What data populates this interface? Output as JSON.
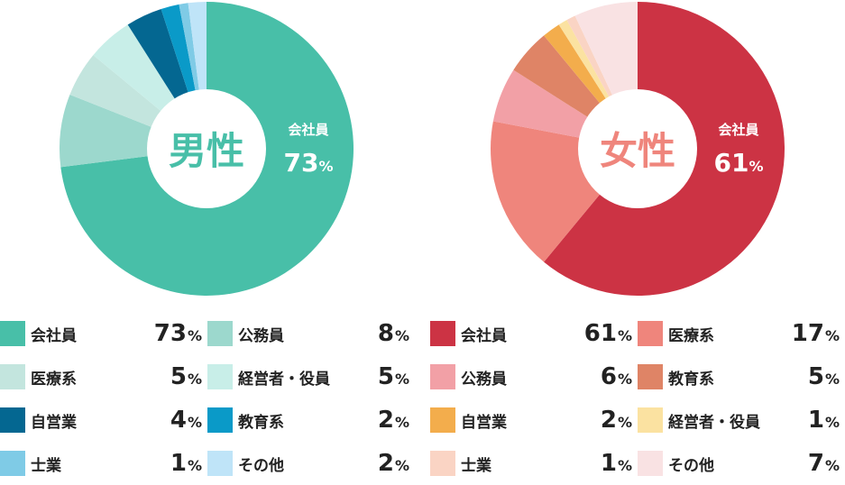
{
  "chart_data": [
    {
      "type": "pie",
      "title": "男性",
      "inner_label": {
        "category": "会社員",
        "value": "73",
        "unit": "%"
      },
      "slices": [
        {
          "label": "会社員",
          "value": 73,
          "color": "#48bfa8"
        },
        {
          "label": "公務員",
          "value": 8,
          "color": "#9cd8cd"
        },
        {
          "label": "医療系",
          "value": 5,
          "color": "#c3e5de"
        },
        {
          "label": "経営者・役員",
          "value": 5,
          "color": "#c8eee8"
        },
        {
          "label": "自営業",
          "value": 4,
          "color": "#046791"
        },
        {
          "label": "教育系",
          "value": 2,
          "color": "#0a9ac8"
        },
        {
          "label": "士業",
          "value": 1,
          "color": "#7fcbe6"
        },
        {
          "label": "その他",
          "value": 2,
          "color": "#bfe4f8"
        }
      ],
      "title_color": "#48bfa8"
    },
    {
      "type": "pie",
      "title": "女性",
      "inner_label": {
        "category": "会社員",
        "value": "61",
        "unit": "%"
      },
      "slices": [
        {
          "label": "会社員",
          "value": 61,
          "color": "#cc3344"
        },
        {
          "label": "医療系",
          "value": 17,
          "color": "#ef857c"
        },
        {
          "label": "公務員",
          "value": 6,
          "color": "#f2a0a6"
        },
        {
          "label": "教育系",
          "value": 5,
          "color": "#df8466"
        },
        {
          "label": "自営業",
          "value": 2,
          "color": "#f3ad4c"
        },
        {
          "label": "経営者・役員",
          "value": 1,
          "color": "#fbe2a1"
        },
        {
          "label": "士業",
          "value": 1,
          "color": "#fad4c4"
        },
        {
          "label": "その他",
          "value": 7,
          "color": "#f9e2e3"
        }
      ],
      "title_color": "#ef857c"
    }
  ],
  "legend_male": [
    {
      "label": "会社員",
      "value": "73",
      "color": "#48bfa8"
    },
    {
      "label": "公務員",
      "value": "8",
      "color": "#9cd8cd"
    },
    {
      "label": "医療系",
      "value": "5",
      "color": "#c3e5de"
    },
    {
      "label": "経営者・役員",
      "value": "5",
      "color": "#c8eee8"
    },
    {
      "label": "自営業",
      "value": "4",
      "color": "#046791"
    },
    {
      "label": "教育系",
      "value": "2",
      "color": "#0a9ac8"
    },
    {
      "label": "士業",
      "value": "1",
      "color": "#7fcbe6"
    },
    {
      "label": "その他",
      "value": "2",
      "color": "#bfe4f8"
    }
  ],
  "legend_female": [
    {
      "label": "会社員",
      "value": "61",
      "color": "#cc3344"
    },
    {
      "label": "医療系",
      "value": "17",
      "color": "#ef857c"
    },
    {
      "label": "公務員",
      "value": "6",
      "color": "#f2a0a6"
    },
    {
      "label": "教育系",
      "value": "5",
      "color": "#df8466"
    },
    {
      "label": "自営業",
      "value": "2",
      "color": "#f3ad4c"
    },
    {
      "label": "経営者・役員",
      "value": "1",
      "color": "#fbe2a1"
    },
    {
      "label": "士業",
      "value": "1",
      "color": "#fad4c4"
    },
    {
      "label": "その他",
      "value": "7",
      "color": "#f9e2e3"
    }
  ],
  "percent_sign": "%"
}
